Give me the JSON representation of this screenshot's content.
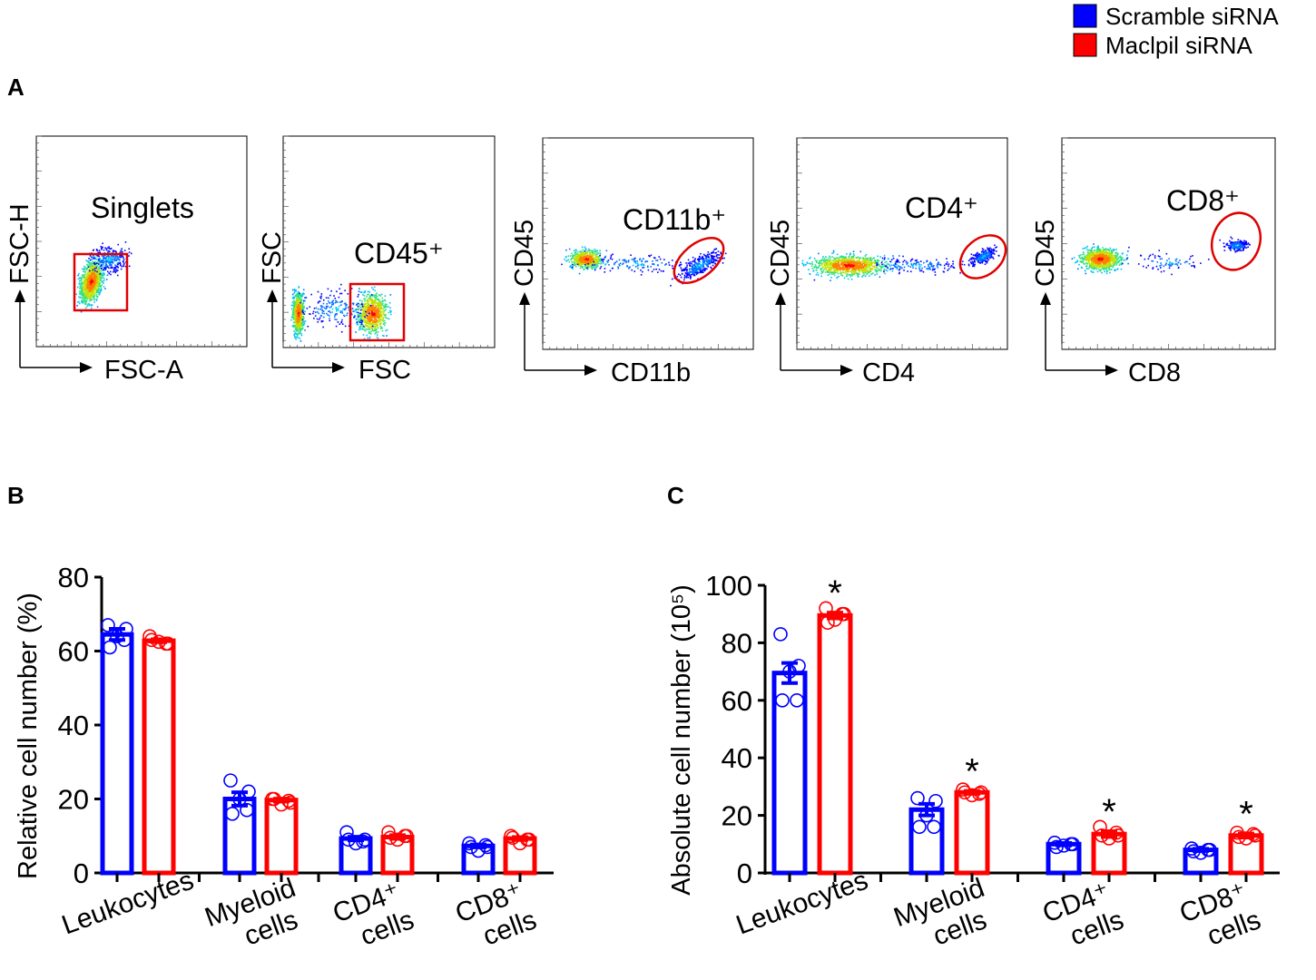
{
  "legend": {
    "items": [
      {
        "label": "Scramble siRNA",
        "color": "#0000ff"
      },
      {
        "label": "Maclpil siRNA",
        "color": "#ff0000"
      }
    ]
  },
  "panel_labels": {
    "a": "A",
    "b": "B",
    "c": "C"
  },
  "flow_panels": [
    {
      "ylabel": "FSC-H",
      "xlabel": "FSC-A",
      "gate_label": "Singlets",
      "gate_shape": "rectangle"
    },
    {
      "ylabel": "FSC",
      "xlabel": "FSC",
      "gate_label": "CD45⁺",
      "gate_shape": "rectangle"
    },
    {
      "ylabel": "CD45",
      "xlabel": "CD11b",
      "gate_label": "CD11b⁺",
      "gate_shape": "ellipse"
    },
    {
      "ylabel": "CD45",
      "xlabel": "CD4",
      "gate_label": "CD4⁺",
      "gate_shape": "ellipse"
    },
    {
      "ylabel": "CD45",
      "xlabel": "CD8",
      "gate_label": "CD8⁺",
      "gate_shape": "ellipse"
    }
  ],
  "chart_data": [
    {
      "type": "bar",
      "panel": "B",
      "ylabel": "Relative  cell number (%)",
      "ylim": [
        0,
        80
      ],
      "yticks": [
        "0",
        "20",
        "40",
        "60",
        "80"
      ],
      "categories": [
        "Leukocytes",
        "Myeloid\ncells",
        "CD4⁺\ncells",
        "CD8⁺\ncells"
      ],
      "series": [
        {
          "name": "Scramble siRNA",
          "color": "#0000ff",
          "values": [
            64.5,
            20.0,
            9.3,
            7.3
          ],
          "sem": [
            1.5,
            1.8,
            0.5,
            0.4
          ],
          "points": [
            [
              67,
              66,
              64,
              61,
              63
            ],
            [
              25,
              22,
              20,
              16,
              17
            ],
            [
              11,
              9,
              8,
              9,
              8.5
            ],
            [
              8,
              7,
              6,
              7,
              7.5
            ]
          ]
        },
        {
          "name": "Maclpil siRNA",
          "color": "#ff0000",
          "values": [
            62.8,
            19.7,
            9.7,
            9.3
          ],
          "sem": [
            0.4,
            0.4,
            0.5,
            0.4
          ],
          "points": [
            [
              64,
              62,
              62.5,
              63,
              62
            ],
            [
              20,
              19,
              18.5,
              20,
              19.5
            ],
            [
              11,
              10,
              9,
              9.5,
              10
            ],
            [
              10,
              9,
              8,
              9.5,
              9
            ]
          ]
        }
      ],
      "significance": [
        "",
        "",
        "",
        ""
      ]
    },
    {
      "type": "bar",
      "panel": "C",
      "ylabel": "Absolute cell number (10⁵)",
      "ylim": [
        0,
        100
      ],
      "yticks": [
        "0",
        "20",
        "40",
        "60",
        "80",
        "100"
      ],
      "categories": [
        "Leukocytes",
        "Myeloid\ncells",
        "CD4⁺\ncells",
        "CD8⁺\ncells"
      ],
      "series": [
        {
          "name": "Scramble siRNA",
          "color": "#0000ff",
          "values": [
            69.5,
            22.0,
            10.0,
            8.0
          ],
          "sem": [
            3.5,
            2.0,
            0.4,
            0.4
          ],
          "points": [
            [
              83,
              72,
              70,
              60,
              60
            ],
            [
              26,
              25,
              20,
              16,
              16
            ],
            [
              10.5,
              10,
              9.5,
              9,
              10
            ],
            [
              8.5,
              8,
              7,
              7.5,
              8
            ]
          ]
        },
        {
          "name": "Maclpil siRNA",
          "color": "#ff0000",
          "values": [
            89.5,
            28.0,
            13.5,
            13.0
          ],
          "sem": [
            1.0,
            0.5,
            1.0,
            0.7
          ],
          "points": [
            [
              92,
              90,
              88,
              87,
              90
            ],
            [
              29,
              28,
              27,
              28,
              27.5
            ],
            [
              16,
              13,
              12,
              13,
              14
            ],
            [
              14,
              13,
              12,
              12.5,
              13.5
            ]
          ]
        }
      ],
      "significance": [
        "*",
        "*",
        "*",
        "*"
      ]
    }
  ]
}
